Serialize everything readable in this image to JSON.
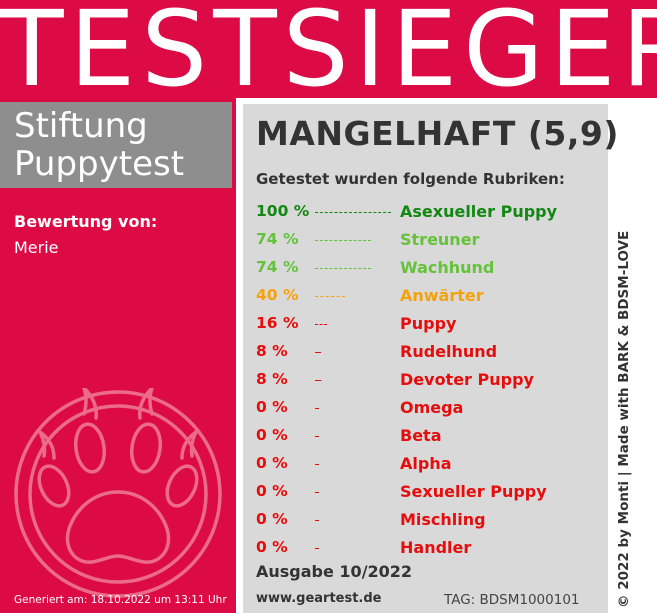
{
  "banner": {
    "title": "TESTSIEGER"
  },
  "brand": {
    "line1": "Stiftung",
    "line2": "Puppytest"
  },
  "rater": {
    "label": "Bewertung von:",
    "name": "Merie"
  },
  "generated": "Generiert am: 18.10.2022 um 13:11 Uhr",
  "verdict": "MANGELHAFT (5,9)",
  "categories_title": "Getestet wurden folgende Rubriken:",
  "categories": [
    {
      "percent": "100 %",
      "value": 100,
      "name": "Asexueller Puppy",
      "color": "#128712"
    },
    {
      "percent": "74 %",
      "value": 74,
      "name": "Streuner",
      "color": "#65c23b"
    },
    {
      "percent": "74 %",
      "value": 74,
      "name": "Wachhund",
      "color": "#65c23b"
    },
    {
      "percent": "40 %",
      "value": 40,
      "name": "Anwärter",
      "color": "#f5a20c"
    },
    {
      "percent": "16 %",
      "value": 16,
      "name": "Puppy",
      "color": "#e50d0d"
    },
    {
      "percent": "8 %",
      "value": 8,
      "name": "Rudelhund",
      "color": "#e50d0d"
    },
    {
      "percent": "8 %",
      "value": 8,
      "name": "Devoter Puppy",
      "color": "#e50d0d"
    },
    {
      "percent": "0 %",
      "value": 0,
      "name": "Omega",
      "color": "#e50d0d"
    },
    {
      "percent": "0 %",
      "value": 0,
      "name": "Beta",
      "color": "#e50d0d"
    },
    {
      "percent": "0 %",
      "value": 0,
      "name": "Alpha",
      "color": "#e50d0d"
    },
    {
      "percent": "0 %",
      "value": 0,
      "name": "Sexueller Puppy",
      "color": "#e50d0d"
    },
    {
      "percent": "0 %",
      "value": 0,
      "name": "Mischling",
      "color": "#e50d0d"
    },
    {
      "percent": "0 %",
      "value": 0,
      "name": "Handler",
      "color": "#e50d0d"
    }
  ],
  "edition": "Ausgabe 10/2022",
  "website": "www.geartest.de",
  "tag": "TAG: BDSM1000101",
  "copyright": "© 2022 by Monti | Made with BARK & BDSM-LOVE",
  "colors": {
    "banner": "#dc0a45",
    "brand_box": "#8e8e8e",
    "panel": "#d9d9d9"
  },
  "icons": {
    "logo": "paw-icon"
  }
}
